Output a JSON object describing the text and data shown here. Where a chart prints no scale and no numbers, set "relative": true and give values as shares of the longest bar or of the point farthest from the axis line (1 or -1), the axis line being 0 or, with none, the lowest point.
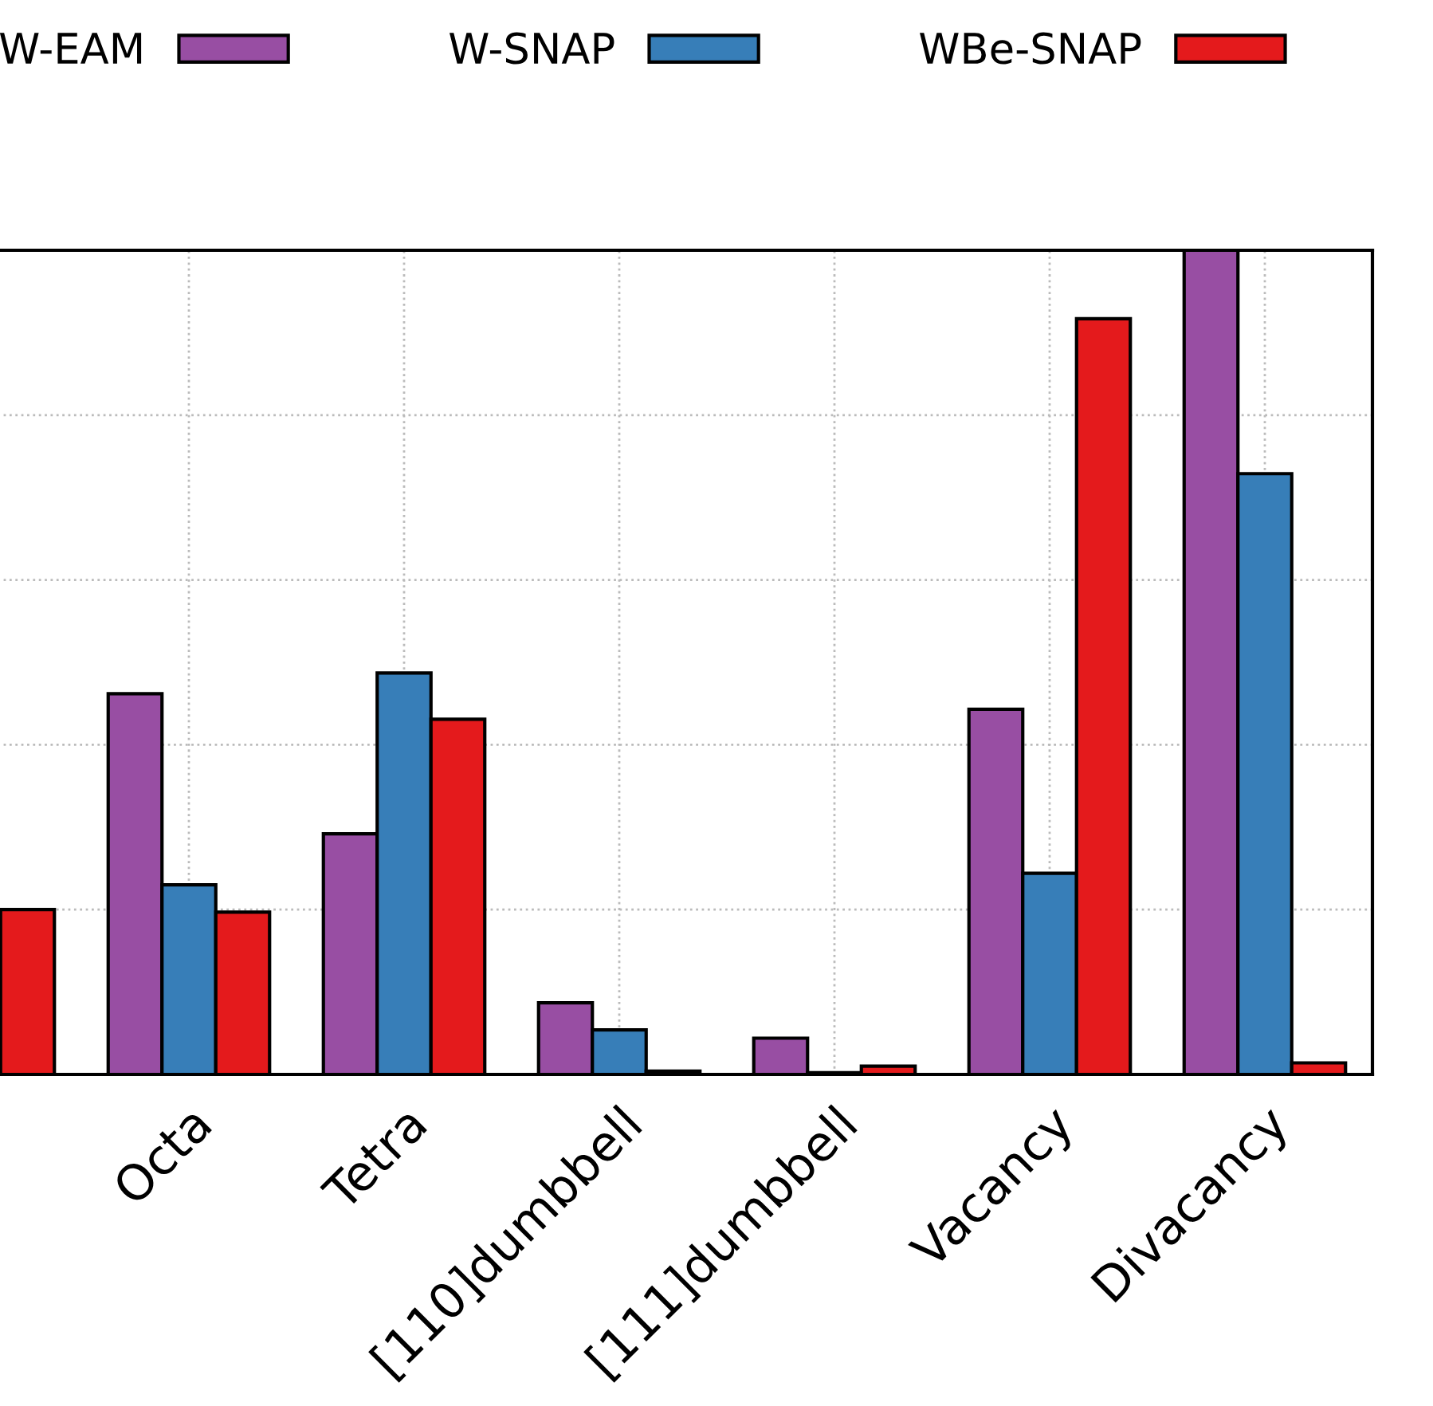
{
  "chart_data": {
    "type": "bar",
    "relative": true,
    "categories": [
      null,
      "Octa",
      "Tetra",
      "[110]dumbbell",
      "[111]dumbbell",
      "Vacancy",
      "Divacancy"
    ],
    "series": [
      {
        "name": "W-EAM",
        "color": "#984ea3",
        "values": [
          null,
          0.462,
          0.292,
          0.087,
          0.044,
          0.443,
          1.0
        ]
      },
      {
        "name": "W-SNAP",
        "color": "#377eb8",
        "values": [
          null,
          0.23,
          0.487,
          0.054,
          0.002,
          0.244,
          0.729
        ]
      },
      {
        "name": "WBe-SNAP",
        "color": "#e41a1c",
        "values": [
          0.2,
          0.197,
          0.431,
          0.004,
          0.01,
          0.917,
          0.014
        ]
      }
    ],
    "grid": true,
    "legend": "top"
  }
}
